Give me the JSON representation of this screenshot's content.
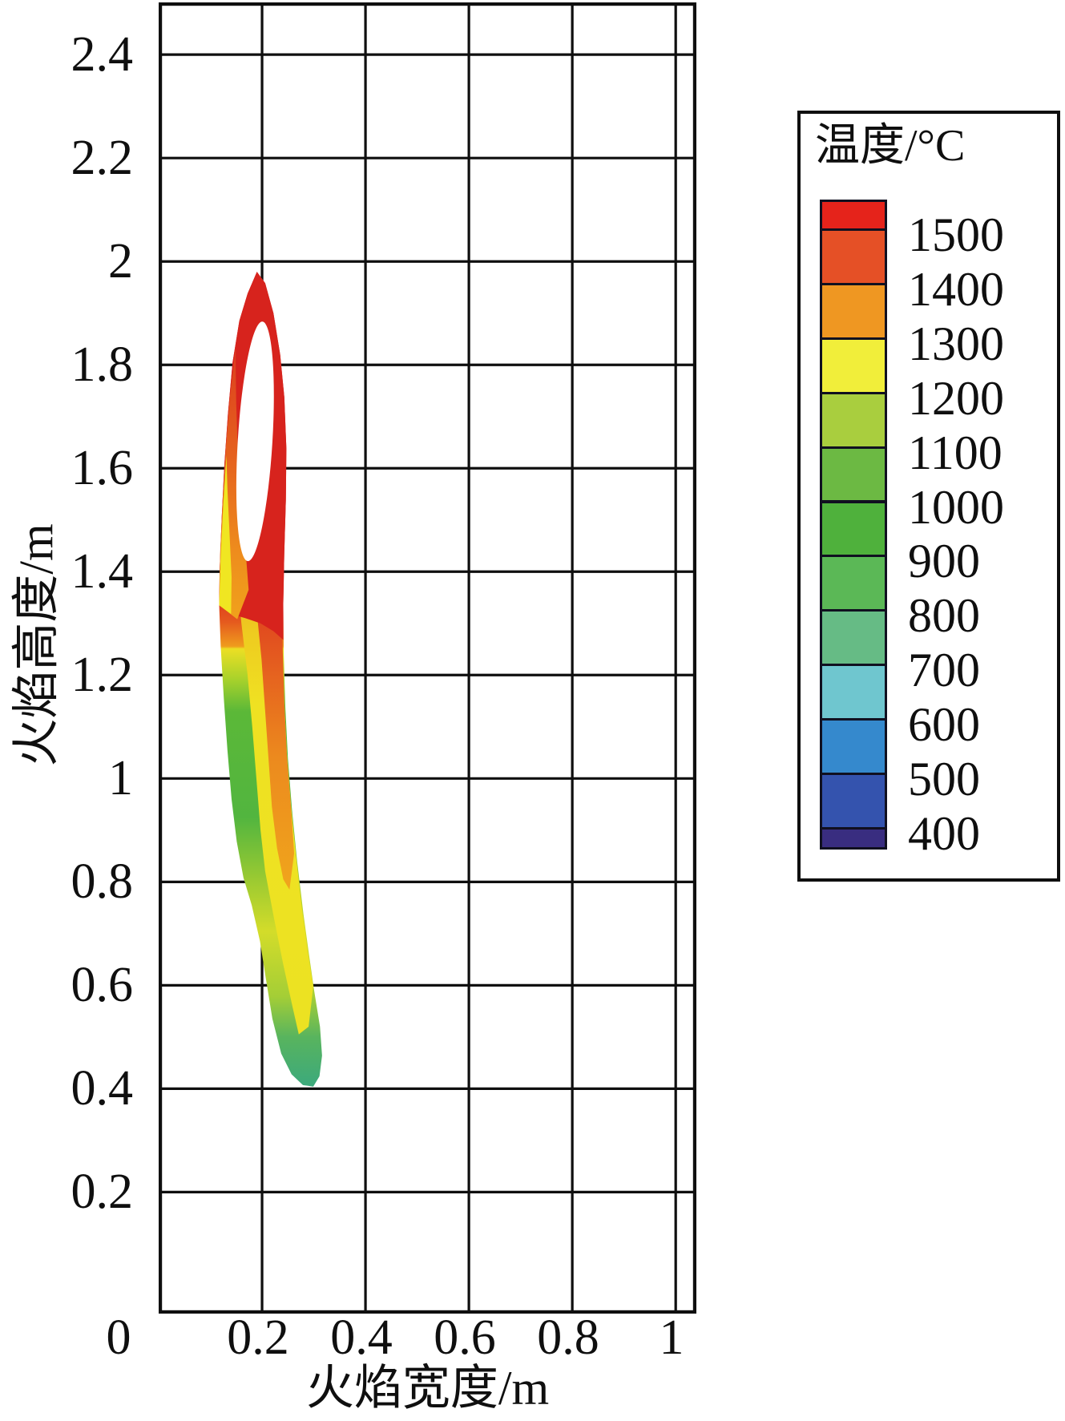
{
  "axes": {
    "x_title": "火焰宽度/m",
    "y_title": "火焰高度/m",
    "x_tick_labels": [
      "0",
      "0.2",
      "0.4",
      "0.6",
      "0.8",
      "1"
    ],
    "y_tick_labels": [
      "2.4",
      "2.2",
      "2",
      "1.8",
      "1.6",
      "1.4",
      "1.2",
      "1",
      "0.8",
      "0.6",
      "0.4",
      "0.2"
    ]
  },
  "legend": {
    "title": "温度/°C",
    "labels": [
      "1500",
      "1400",
      "1300",
      "1200",
      "1100",
      "1000",
      "900",
      "800",
      "700",
      "600",
      "500",
      "400"
    ],
    "colors": [
      "#e5231b",
      "#e55026",
      "#ef9722",
      "#f1ee3a",
      "#a9ce3e",
      "#6cb943",
      "#4fb13c",
      "#5bb856",
      "#66bb85",
      "#6fc6cf",
      "#3589cd",
      "#3453ae",
      "#392d80"
    ]
  },
  "chart_data": {
    "type": "heatmap",
    "subtype": "filled-contour-flame-temperature",
    "title": "",
    "xlabel": "火焰宽度/m",
    "ylabel": "火焰高度/m",
    "xlim": [
      0,
      1.04
    ],
    "ylim": [
      -0.035,
      2.501
    ],
    "x_ticks": [
      0.2,
      0.4,
      0.6,
      0.8,
      1.0
    ],
    "x_tick_values_labeled": [
      0,
      0.2,
      0.4,
      0.6,
      0.8,
      1.0
    ],
    "y_ticks": [
      2.4,
      2.2,
      2.0,
      1.8,
      1.6,
      1.4,
      1.2,
      1.0,
      0.8,
      0.6,
      0.4,
      0.2
    ],
    "grid": true,
    "grid_color": "#0f0f0f",
    "colorbar": {
      "title": "温度/°C",
      "tick_values": [
        1500,
        1400,
        1300,
        1200,
        1100,
        1000,
        900,
        800,
        700,
        600,
        500,
        400
      ],
      "colors": [
        "#e5231b",
        "#e55026",
        "#ef9722",
        "#f1ee3a",
        "#a9ce3e",
        "#6cb943",
        "#4fb13c",
        "#5bb856",
        "#66bb85",
        "#6fc6cf",
        "#3589cd",
        "#3453ae",
        "#392d80"
      ],
      "position": "right"
    },
    "flame": {
      "tip_top_xy": [
        0.19,
        1.98
      ],
      "tip_bottom_xy": [
        0.3,
        0.41
      ],
      "max_temp_zone_c": 1500,
      "hollow_core": {
        "center": [
          0.1865,
          1.652
        ],
        "rx": 0.0335,
        "ry": 0.232,
        "tilt_deg": 3.5
      }
    },
    "flame_layers": [
      {
        "name": "flame-body-base",
        "shape": "polygon",
        "points": [
          [
            0.19,
            1.98
          ],
          [
            0.172,
            1.938
          ],
          [
            0.156,
            1.885
          ],
          [
            0.143,
            1.805
          ],
          [
            0.134,
            1.705
          ],
          [
            0.127,
            1.605
          ],
          [
            0.122,
            1.505
          ],
          [
            0.118,
            1.405
          ],
          [
            0.117,
            1.335
          ],
          [
            0.12,
            1.255
          ],
          [
            0.126,
            1.155
          ],
          [
            0.133,
            1.055
          ],
          [
            0.141,
            0.96
          ],
          [
            0.151,
            0.878
          ],
          [
            0.164,
            0.808
          ],
          [
            0.18,
            0.755
          ],
          [
            0.196,
            0.685
          ],
          [
            0.207,
            0.615
          ],
          [
            0.22,
            0.535
          ],
          [
            0.237,
            0.468
          ],
          [
            0.257,
            0.428
          ],
          [
            0.279,
            0.407
          ],
          [
            0.299,
            0.404
          ],
          [
            0.311,
            0.424
          ],
          [
            0.316,
            0.464
          ],
          [
            0.312,
            0.52
          ],
          [
            0.301,
            0.588
          ],
          [
            0.291,
            0.658
          ],
          [
            0.28,
            0.738
          ],
          [
            0.268,
            0.838
          ],
          [
            0.258,
            0.938
          ],
          [
            0.25,
            1.038
          ],
          [
            0.245,
            1.138
          ],
          [
            0.242,
            1.238
          ],
          [
            0.241,
            1.338
          ],
          [
            0.243,
            1.438
          ],
          [
            0.246,
            1.538
          ],
          [
            0.247,
            1.638
          ],
          [
            0.243,
            1.738
          ],
          [
            0.235,
            1.82
          ],
          [
            0.222,
            1.9
          ],
          [
            0.206,
            1.958
          ]
        ],
        "fill": {
          "type": "linear",
          "y_top": 1.98,
          "y_bottom": 0.405,
          "stops": [
            [
              0.0,
              "#d7231d"
            ],
            [
              0.38,
              "#d7231d"
            ],
            [
              0.43,
              "#e55a1e"
            ],
            [
              0.46,
              "#ef9c1d"
            ],
            [
              0.463,
              "#ecdf24"
            ],
            [
              0.5,
              "#a9d22b"
            ],
            [
              0.54,
              "#5bb838"
            ],
            [
              0.67,
              "#52b53f"
            ],
            [
              0.75,
              "#9ecb31"
            ],
            [
              0.81,
              "#d3dc2a"
            ],
            [
              0.89,
              "#a4ce36"
            ],
            [
              0.94,
              "#58b45e"
            ],
            [
              1.0,
              "#3ca97c"
            ]
          ]
        }
      },
      {
        "name": "yellow-right-stripe",
        "shape": "polygon",
        "points": [
          [
            0.15,
            1.4
          ],
          [
            0.16,
            1.3
          ],
          [
            0.172,
            1.2
          ],
          [
            0.181,
            1.1
          ],
          [
            0.189,
            1.0
          ],
          [
            0.197,
            0.9
          ],
          [
            0.206,
            0.82
          ],
          [
            0.223,
            0.73
          ],
          [
            0.241,
            0.64
          ],
          [
            0.259,
            0.558
          ],
          [
            0.271,
            0.505
          ],
          [
            0.29,
            0.52
          ],
          [
            0.299,
            0.598
          ],
          [
            0.288,
            0.668
          ],
          [
            0.277,
            0.748
          ],
          [
            0.266,
            0.848
          ],
          [
            0.256,
            0.948
          ],
          [
            0.248,
            1.048
          ],
          [
            0.243,
            1.148
          ],
          [
            0.24,
            1.248
          ],
          [
            0.239,
            1.348
          ],
          [
            0.24,
            1.42
          ]
        ],
        "fill": {
          "type": "linear",
          "y_top": 1.42,
          "y_bottom": 0.5,
          "stops": [
            [
              0.0,
              "#f0a61d"
            ],
            [
              0.15,
              "#eecb20"
            ],
            [
              0.3,
              "#efe122"
            ],
            [
              1.0,
              "#ece222"
            ]
          ]
        }
      },
      {
        "name": "orange-right-stripe",
        "shape": "polygon",
        "points": [
          [
            0.176,
            1.43
          ],
          [
            0.189,
            1.33
          ],
          [
            0.199,
            1.23
          ],
          [
            0.206,
            1.13
          ],
          [
            0.213,
            1.03
          ],
          [
            0.219,
            0.945
          ],
          [
            0.229,
            0.865
          ],
          [
            0.241,
            0.805
          ],
          [
            0.253,
            0.785
          ],
          [
            0.262,
            0.855
          ],
          [
            0.256,
            0.945
          ],
          [
            0.248,
            1.045
          ],
          [
            0.243,
            1.145
          ],
          [
            0.24,
            1.245
          ],
          [
            0.239,
            1.345
          ],
          [
            0.24,
            1.43
          ]
        ],
        "fill": {
          "type": "linear",
          "y_top": 1.43,
          "y_bottom": 0.78,
          "stops": [
            [
              0.0,
              "#da2a1e"
            ],
            [
              0.3,
              "#e45a1f"
            ],
            [
              0.6,
              "#ec8a1e"
            ],
            [
              1.0,
              "#f0a61c"
            ]
          ]
        }
      },
      {
        "name": "red-upper-region",
        "shape": "polygon",
        "points": [
          [
            0.19,
            1.98
          ],
          [
            0.172,
            1.938
          ],
          [
            0.156,
            1.885
          ],
          [
            0.143,
            1.805
          ],
          [
            0.134,
            1.705
          ],
          [
            0.127,
            1.605
          ],
          [
            0.122,
            1.505
          ],
          [
            0.118,
            1.405
          ],
          [
            0.117,
            1.335
          ],
          [
            0.14,
            1.318
          ],
          [
            0.168,
            1.31
          ],
          [
            0.197,
            1.3
          ],
          [
            0.222,
            1.285
          ],
          [
            0.241,
            1.268
          ],
          [
            0.241,
            1.338
          ],
          [
            0.243,
            1.438
          ],
          [
            0.246,
            1.538
          ],
          [
            0.247,
            1.638
          ],
          [
            0.243,
            1.738
          ],
          [
            0.235,
            1.82
          ],
          [
            0.222,
            1.9
          ],
          [
            0.206,
            1.958
          ]
        ],
        "fill": {
          "type": "solid",
          "color": "#d7231d"
        }
      },
      {
        "name": "orange-left-flank",
        "shape": "polygon",
        "points": [
          [
            0.149,
            1.835
          ],
          [
            0.138,
            1.74
          ],
          [
            0.13,
            1.64
          ],
          [
            0.124,
            1.54
          ],
          [
            0.119,
            1.44
          ],
          [
            0.117,
            1.335
          ],
          [
            0.152,
            1.308
          ],
          [
            0.174,
            1.365
          ],
          [
            0.167,
            1.455
          ],
          [
            0.159,
            1.545
          ],
          [
            0.153,
            1.635
          ],
          [
            0.15,
            1.725
          ],
          [
            0.149,
            1.795
          ]
        ],
        "fill": {
          "type": "linear",
          "y_top": 1.84,
          "y_bottom": 1.3,
          "stops": [
            [
              0.0,
              "#dc3d1e"
            ],
            [
              0.4,
              "#e5611e"
            ],
            [
              0.75,
              "#ee8d1d"
            ],
            [
              1.0,
              "#f0a31c"
            ]
          ]
        }
      },
      {
        "name": "yellow-left-flank",
        "shape": "polygon",
        "points": [
          [
            0.131,
            1.625
          ],
          [
            0.125,
            1.53
          ],
          [
            0.12,
            1.43
          ],
          [
            0.117,
            1.335
          ],
          [
            0.14,
            1.318
          ],
          [
            0.141,
            1.39
          ],
          [
            0.137,
            1.475
          ],
          [
            0.133,
            1.56
          ]
        ],
        "fill": {
          "type": "solid",
          "color": "#f0e622"
        }
      },
      {
        "name": "hollow-white-core",
        "shape": "ellipse",
        "center": [
          0.1865,
          1.652
        ],
        "rx": 0.0335,
        "ry": 0.232,
        "tilt_deg": 3.5,
        "fill": {
          "type": "solid",
          "color": "#ffffff"
        }
      }
    ]
  }
}
